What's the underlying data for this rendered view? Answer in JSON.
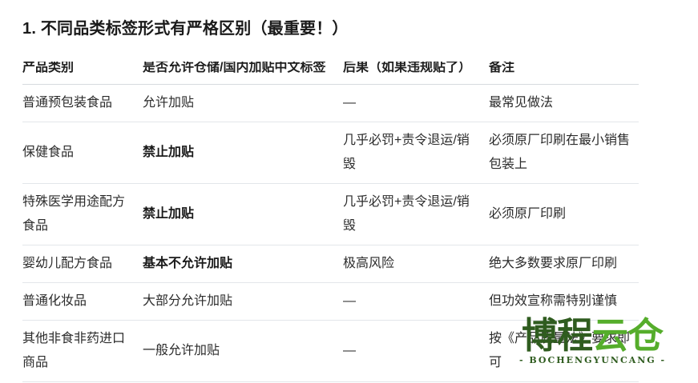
{
  "page": {
    "title": "1. 不同品类标签形式有严格区别（最重要！）"
  },
  "table": {
    "headers": [
      "产品类别",
      "是否允许仓储/国内加贴中文标签",
      "后果（如果违规贴了）",
      "备注"
    ],
    "rows": [
      {
        "category": "普通预包装食品",
        "allowed": "允许加贴",
        "allowed_emphasis": false,
        "consequence": "—",
        "note": "最常见做法"
      },
      {
        "category": "保健食品",
        "allowed": "禁止加贴",
        "allowed_emphasis": true,
        "consequence": "几乎必罚+责令退运/销毁",
        "note": "必须原厂印刷在最小销售包装上"
      },
      {
        "category": "特殊医学用途配方食品",
        "allowed": "禁止加贴",
        "allowed_emphasis": true,
        "consequence": "几乎必罚+责令退运/销毁",
        "note": "必须原厂印刷"
      },
      {
        "category": "婴幼儿配方食品",
        "allowed": "基本不允许加贴",
        "allowed_emphasis": true,
        "consequence": "极高风险",
        "note": "绝大多数要求原厂印刷"
      },
      {
        "category": "普通化妆品",
        "allowed": "大部分允许加贴",
        "allowed_emphasis": false,
        "consequence": "—",
        "note": "但功效宣称需特别谨慎"
      },
      {
        "category": "其他非食非药进口商品",
        "allowed": "一般允许加贴",
        "allowed_emphasis": false,
        "consequence": "—",
        "note": "按《产品质量法》要求即可"
      }
    ]
  },
  "watermark": {
    "name_part1": "博程",
    "name_part2": "云仓",
    "tagline": "- BOCHENGYUNCANG -",
    "color_dark_green": "#2f5c1f",
    "color_light_green": "#55ad2b"
  }
}
